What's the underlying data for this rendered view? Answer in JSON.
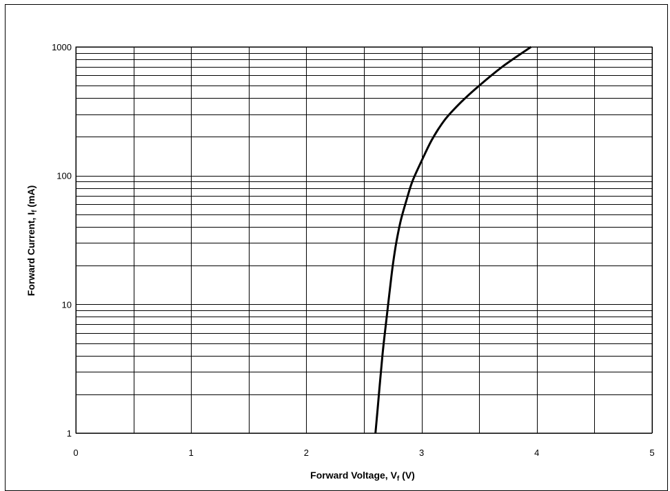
{
  "chart_data": {
    "type": "line",
    "title": "",
    "xlabel": "Forward Voltage, V",
    "xlabel_sub": "f",
    "xlabel_unit": " (V)",
    "ylabel": "Forward Current, I",
    "ylabel_sub": "f",
    "ylabel_unit": " (mA)",
    "xlim": [
      0,
      5
    ],
    "ylim": [
      1,
      1000
    ],
    "yscale": "log",
    "grid": true,
    "legend": "none",
    "x_ticks": [
      "0",
      "1",
      "2",
      "3",
      "4",
      "5"
    ],
    "y_ticks": [
      "1",
      "10",
      "100",
      "1000"
    ],
    "series": [
      {
        "x": [
          2.6,
          2.63,
          2.66,
          2.69,
          2.72,
          2.75,
          2.78,
          2.82,
          2.87,
          2.92,
          3.0,
          3.09,
          3.2,
          3.34,
          3.5,
          3.7,
          3.95
        ],
        "y": [
          1,
          2,
          4,
          7,
          12,
          20,
          30,
          45,
          65,
          90,
          130,
          190,
          270,
          370,
          500,
          700,
          1000
        ],
        "color": "#000000"
      }
    ]
  }
}
